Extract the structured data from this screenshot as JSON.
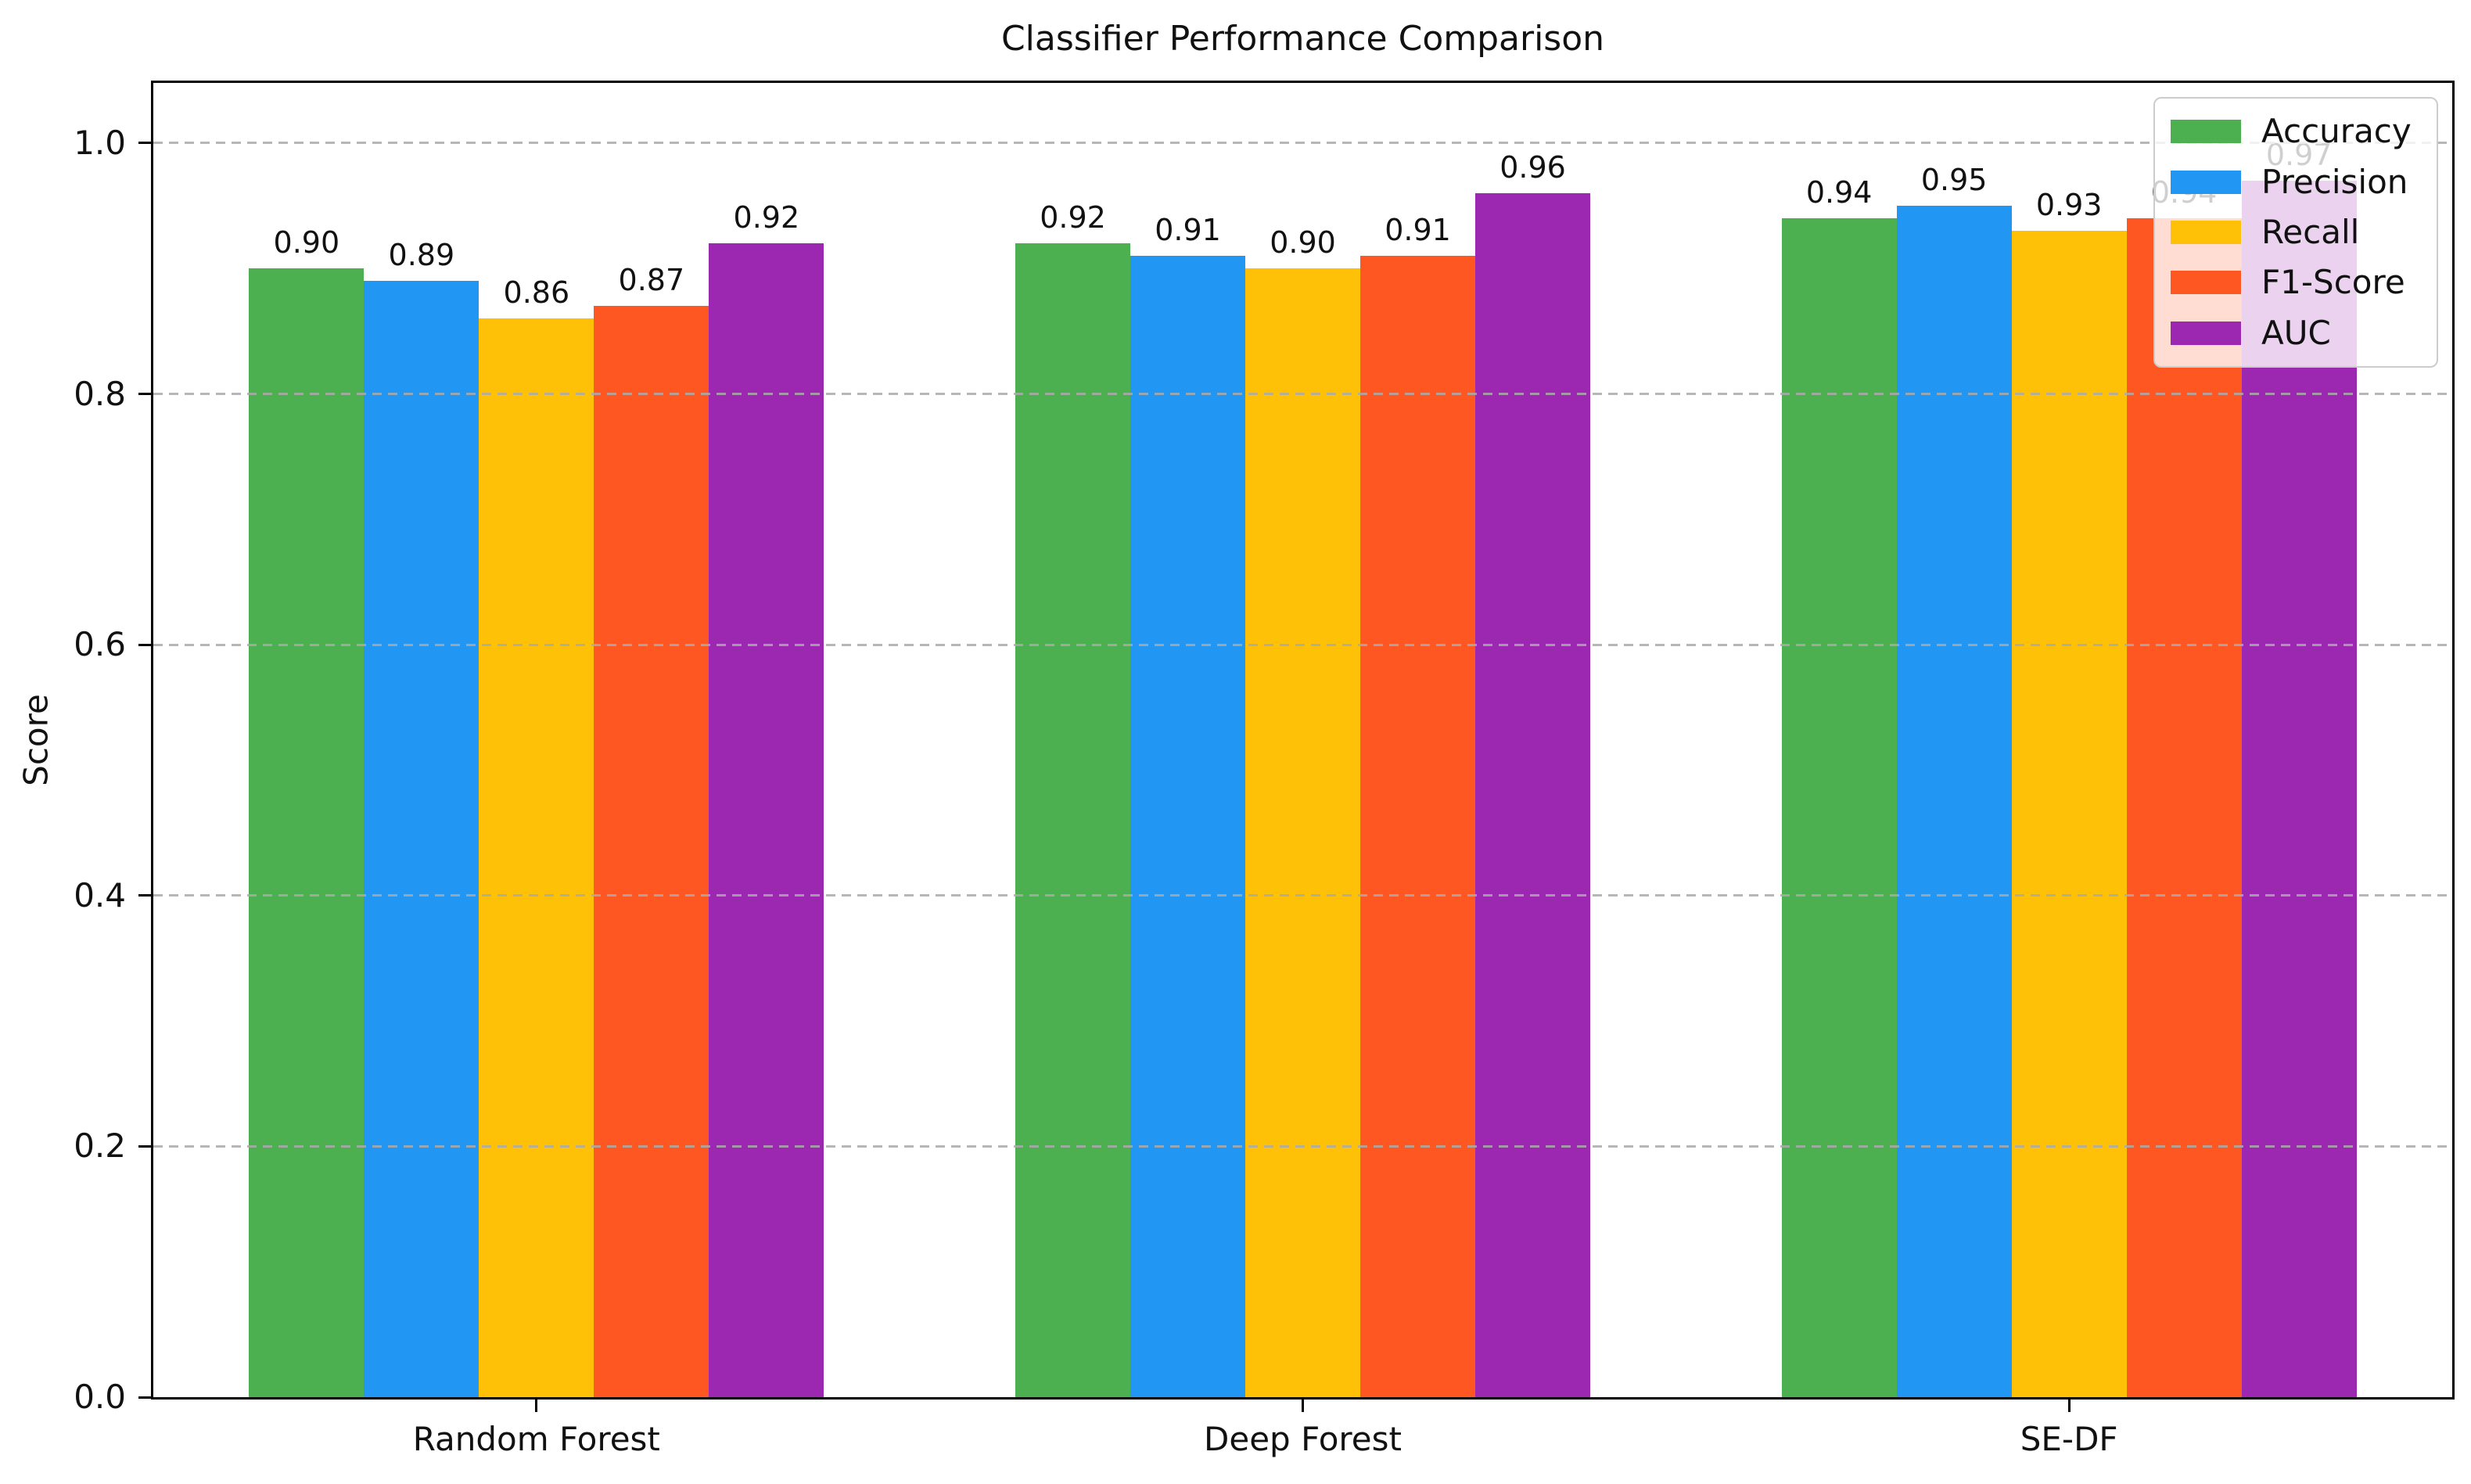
{
  "chart_data": {
    "type": "bar",
    "title": "Classifier Performance Comparison",
    "xlabel": "",
    "ylabel": "Score",
    "categories": [
      "Random Forest",
      "Deep Forest",
      "SE-DF"
    ],
    "series": [
      {
        "name": "Accuracy",
        "color": "#4caf50",
        "values": [
          0.9,
          0.92,
          0.94
        ]
      },
      {
        "name": "Precision",
        "color": "#2196f3",
        "values": [
          0.89,
          0.91,
          0.95
        ]
      },
      {
        "name": "Recall",
        "color": "#ffc107",
        "values": [
          0.86,
          0.9,
          0.93
        ]
      },
      {
        "name": "F1-Score",
        "color": "#ff5722",
        "values": [
          0.87,
          0.91,
          0.94
        ]
      },
      {
        "name": "AUC",
        "color": "#9c27b0",
        "values": [
          0.92,
          0.96,
          0.97
        ]
      }
    ],
    "y_ticks": [
      0.0,
      0.2,
      0.4,
      0.6,
      0.8,
      1.0
    ],
    "ylim": [
      0,
      1.048
    ],
    "bar_value_labels": true,
    "grid": {
      "axis": "y",
      "style": "dashed",
      "color": "#aaaaaa",
      "above_bars": true
    },
    "legend": {
      "position": "upper-right",
      "background": "rgba(255,255,255,0.8)",
      "border": "#cccccc"
    }
  }
}
